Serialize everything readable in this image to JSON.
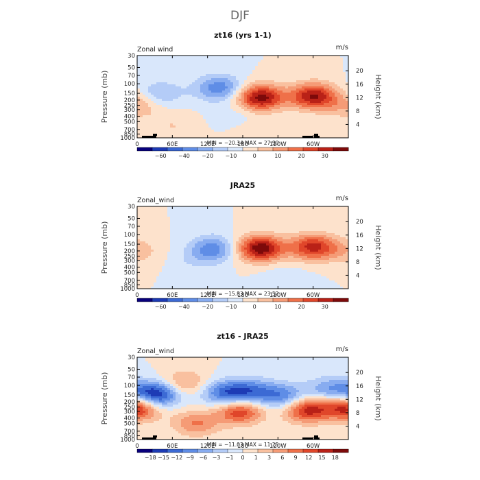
{
  "figure": {
    "main_title": "DJF"
  },
  "chart_data": [
    {
      "type": "heatmap",
      "title": "zt16 (yrs 1-1)",
      "left_label": "Zonal wind",
      "units": "m/s",
      "ylabel_left": "Pressure (mb)",
      "ylabel_right": "Height (km)",
      "x_ticks": [
        "0",
        "60E",
        "120E",
        "180",
        "120W",
        "60W"
      ],
      "y_ticks": [
        "30",
        "50",
        "70",
        "100",
        "150",
        "200",
        "250",
        "300",
        "400",
        "500",
        "700",
        "850",
        "1000"
      ],
      "height_ticks": [
        "20",
        "16",
        "12",
        "8",
        "4"
      ],
      "stats": "MIN = −20.34   MAX =  27.90",
      "colorbar_ticks": [
        "−60",
        "−40",
        "−20",
        "−10",
        "0",
        "10",
        "20",
        "30"
      ],
      "value_range": [
        -20.34,
        27.9
      ],
      "features": [
        {
          "lon": 40,
          "level_mb": 150,
          "value": -8
        },
        {
          "lon": 140,
          "level_mb": 120,
          "value": -15
        },
        {
          "lon": 210,
          "level_mb": 180,
          "value": 26
        },
        {
          "lon": 300,
          "level_mb": 170,
          "value": 24
        },
        {
          "lon": 0,
          "level_mb": 250,
          "value": 8
        },
        {
          "lon": 170,
          "level_mb": 400,
          "value": -3
        },
        {
          "lon": 60,
          "level_mb": 600,
          "value": 4
        },
        {
          "lon": 200,
          "level_mb": 700,
          "value": 3
        }
      ]
    },
    {
      "type": "heatmap",
      "title": "JRA25",
      "left_label": "Zonal_wind",
      "units": "m/s",
      "ylabel_left": "Pressure (mb)",
      "ylabel_right": "Height (km)",
      "x_ticks": [
        "0",
        "60E",
        "120E",
        "180",
        "120W",
        "60W"
      ],
      "y_ticks": [
        "30",
        "50",
        "70",
        "100",
        "150",
        "200",
        "250",
        "300",
        "400",
        "500",
        "700",
        "850",
        "1000"
      ],
      "height_ticks": [
        "20",
        "16",
        "12",
        "8",
        "4"
      ],
      "stats": "MIN = −15.83   MAX =  23.52",
      "colorbar_ticks": [
        "−60",
        "−40",
        "−20",
        "−10",
        "0",
        "10",
        "20",
        "30"
      ],
      "value_range": [
        -15.83,
        23.52
      ],
      "features": [
        {
          "lon": 130,
          "level_mb": 180,
          "value": -12
        },
        {
          "lon": 100,
          "level_mb": 300,
          "value": -3
        },
        {
          "lon": 0,
          "level_mb": 200,
          "value": 5
        },
        {
          "lon": 210,
          "level_mb": 180,
          "value": 23
        },
        {
          "lon": 300,
          "level_mb": 170,
          "value": 18
        },
        {
          "lon": 250,
          "level_mb": 600,
          "value": -2
        }
      ]
    },
    {
      "type": "heatmap",
      "title": "zt16 - JRA25",
      "left_label": "Zonal_wind",
      "units": "m/s",
      "ylabel_left": "Pressure (mb)",
      "ylabel_right": "Height (km)",
      "x_ticks": [
        "0",
        "60E",
        "120E",
        "180",
        "120W",
        "60W"
      ],
      "y_ticks": [
        "30",
        "50",
        "70",
        "100",
        "150",
        "200",
        "250",
        "300",
        "400",
        "500",
        "700",
        "850",
        "1000"
      ],
      "height_ticks": [
        "20",
        "16",
        "12",
        "8",
        "4"
      ],
      "stats": "MIN = −11.03   MAX =  11.25",
      "colorbar_ticks": [
        "−18",
        "−15",
        "−12",
        "−9",
        "−6",
        "−3",
        "−1",
        "0",
        "1",
        "3",
        "6",
        "9",
        "12",
        "15",
        "18"
      ],
      "value_range": [
        -11.03,
        11.25
      ],
      "features": [
        {
          "lon": 30,
          "level_mb": 150,
          "value": -11
        },
        {
          "lon": 150,
          "level_mb": 140,
          "value": -7
        },
        {
          "lon": 195,
          "level_mb": 130,
          "value": -6
        },
        {
          "lon": 250,
          "level_mb": 160,
          "value": -6
        },
        {
          "lon": 330,
          "level_mb": 120,
          "value": -5
        },
        {
          "lon": 0,
          "level_mb": 250,
          "value": 10
        },
        {
          "lon": 175,
          "level_mb": 300,
          "value": 8
        },
        {
          "lon": 290,
          "level_mb": 280,
          "value": 9
        },
        {
          "lon": 80,
          "level_mb": 90,
          "value": 4
        },
        {
          "lon": 100,
          "level_mb": 500,
          "value": 5
        }
      ]
    }
  ],
  "colors": {
    "negative": [
      "#08007c",
      "#1d3bb5",
      "#3c6ad4",
      "#5f8de6",
      "#88acf0",
      "#b4ccf7",
      "#d9e7fb"
    ],
    "positive": [
      "#fde2cc",
      "#f9c09f",
      "#f59b76",
      "#ef7049",
      "#e0462a",
      "#b92117",
      "#7d0a0a"
    ]
  }
}
